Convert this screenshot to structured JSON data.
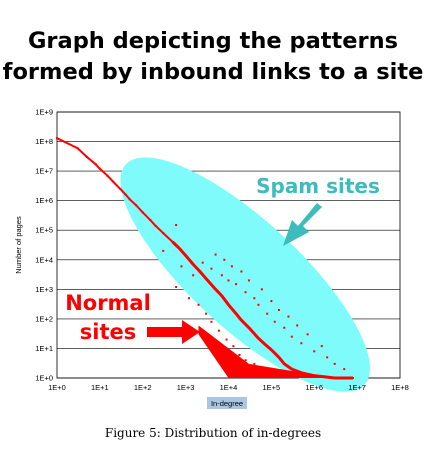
{
  "header": {
    "title_line1": "Graph depicting the patterns",
    "title_line2": "formed by inbound links to a site"
  },
  "caption": "Figure 5:  Distribution of in-degrees",
  "colors": {
    "points": "#ff0000",
    "spam_region": "#7ffbfb",
    "spam_label": "#3cbcbc",
    "normal_label": "#ff0000",
    "gridline": "#000000",
    "xlabel_bg": "#a9c6e3"
  },
  "annotations": {
    "spam_label": "Spam sites",
    "normal_label_line1": "Normal",
    "normal_label_line2": "sites"
  },
  "chart_data": {
    "type": "scatter",
    "xscale": "log",
    "yscale": "log",
    "xlabel": "In-degree",
    "ylabel": "Number of pages",
    "xlim": [
      1,
      100000000
    ],
    "ylim": [
      1,
      1000000000
    ],
    "xticks": [
      "1E+0",
      "1E+1",
      "1E+2",
      "1E+3",
      "1E+4",
      "1E+5",
      "1E+6",
      "1E+7",
      "1E+8"
    ],
    "yticks": [
      "1E+0",
      "1E+1",
      "1E+2",
      "1E+3",
      "1E+4",
      "1E+5",
      "1E+6",
      "1E+7",
      "1E+8",
      "1E+9"
    ],
    "grid": "horizontal",
    "series": [
      {
        "points": [
          [
            1,
            130000000
          ],
          [
            3,
            60000000
          ],
          [
            5,
            30000000
          ],
          [
            8,
            17000000
          ],
          [
            10,
            12000000
          ],
          [
            15,
            7000000
          ],
          [
            20,
            4500000
          ],
          [
            30,
            2500000
          ],
          [
            40,
            1600000
          ],
          [
            50,
            1100000
          ],
          [
            70,
            700000
          ],
          [
            100,
            400000
          ],
          [
            150,
            220000
          ],
          [
            200,
            140000
          ],
          [
            300,
            80000
          ],
          [
            500,
            40000
          ],
          [
            700,
            25000
          ],
          [
            1000,
            14000
          ],
          [
            1500,
            7000
          ],
          [
            2000,
            4500
          ],
          [
            3000,
            2300
          ],
          [
            5000,
            1000
          ],
          [
            7000,
            600
          ],
          [
            10000,
            300
          ],
          [
            15000,
            150
          ],
          [
            20000,
            90
          ],
          [
            30000,
            50
          ],
          [
            50000,
            22
          ],
          [
            70000,
            14
          ],
          [
            100000,
            9
          ],
          [
            150000,
            5
          ],
          [
            200000,
            3
          ],
          [
            300000,
            2
          ],
          [
            500000,
            1.5
          ],
          [
            1000000,
            1.2
          ],
          [
            3000000,
            1
          ],
          [
            8000000,
            1
          ],
          [
            600,
            150000
          ],
          [
            300,
            20000
          ],
          [
            800,
            6000
          ],
          [
            1500,
            3000
          ],
          [
            2500,
            8000
          ],
          [
            4000,
            5000
          ],
          [
            5000,
            15000
          ],
          [
            7000,
            3000
          ],
          [
            8000,
            10000
          ],
          [
            10000,
            2000
          ],
          [
            12000,
            6000
          ],
          [
            15000,
            1500
          ],
          [
            20000,
            4000
          ],
          [
            25000,
            800
          ],
          [
            30000,
            2000
          ],
          [
            40000,
            500
          ],
          [
            50000,
            300
          ],
          [
            60000,
            1000
          ],
          [
            80000,
            150
          ],
          [
            100000,
            400
          ],
          [
            120000,
            80
          ],
          [
            150000,
            200
          ],
          [
            200000,
            50
          ],
          [
            250000,
            120
          ],
          [
            300000,
            25
          ],
          [
            400000,
            60
          ],
          [
            500000,
            15
          ],
          [
            700000,
            30
          ],
          [
            1000000,
            8
          ],
          [
            1500000,
            12
          ],
          [
            2000000,
            5
          ],
          [
            3000000,
            3
          ],
          [
            5000000,
            2
          ],
          [
            600,
            1200
          ],
          [
            1200,
            500
          ],
          [
            2000,
            300
          ],
          [
            3000,
            150
          ],
          [
            4000,
            80
          ],
          [
            6000,
            40
          ],
          [
            9000,
            20
          ],
          [
            13000,
            12
          ],
          [
            18000,
            6
          ],
          [
            25000,
            4
          ],
          [
            40000,
            3
          ],
          [
            60000,
            2
          ]
        ]
      }
    ],
    "regions": [
      {
        "label": "Spam sites",
        "x_range": [
          60,
          10000000
        ],
        "y_range": [
          1,
          10000000
        ]
      }
    ]
  }
}
